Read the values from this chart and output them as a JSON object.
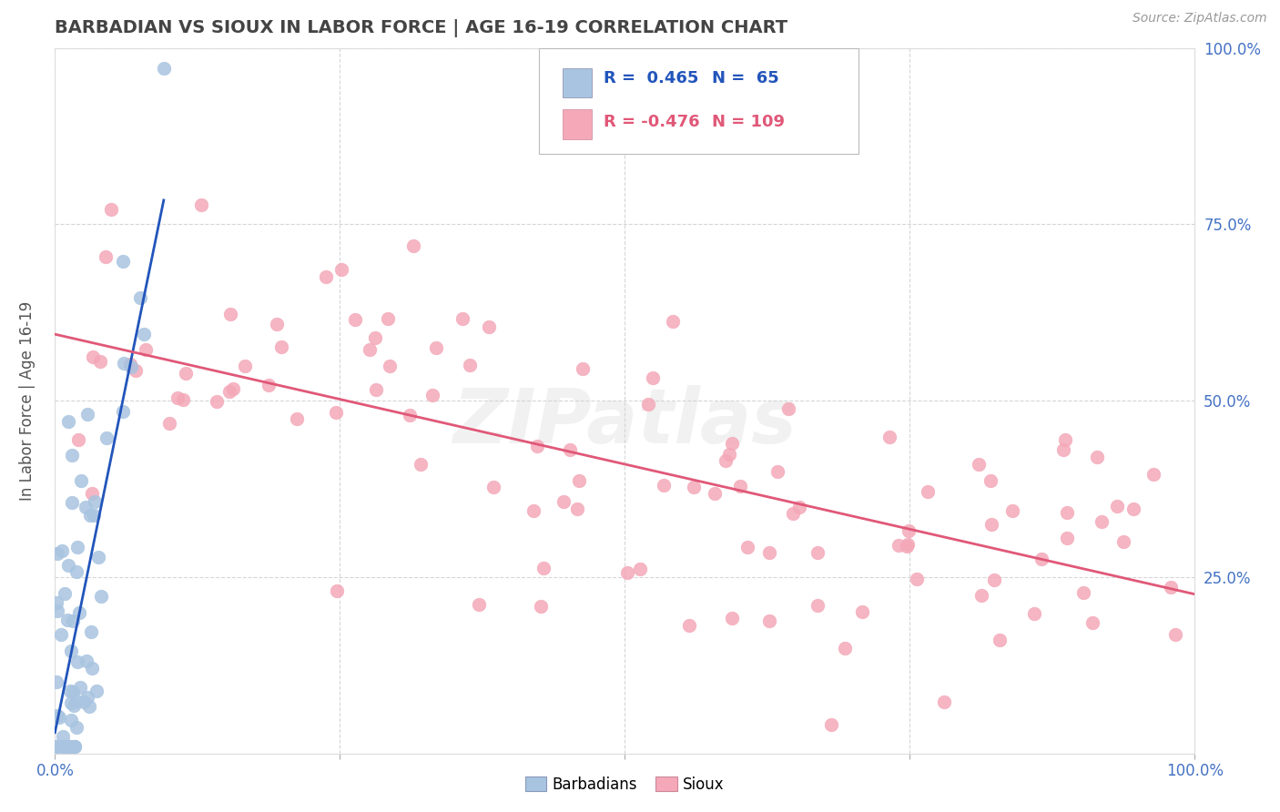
{
  "title": "BARBADIAN VS SIOUX IN LABOR FORCE | AGE 16-19 CORRELATION CHART",
  "source": "Source: ZipAtlas.com",
  "ylabel": "In Labor Force | Age 16-19",
  "barbadian_color": "#a8c4e0",
  "sioux_color": "#f4a8b8",
  "barbadian_R": 0.465,
  "barbadian_N": 65,
  "sioux_R": -0.476,
  "sioux_N": 109,
  "barbadian_line_color": "#2255bb",
  "sioux_line_color": "#e05878",
  "grid_color": "#cccccc",
  "title_color": "#444444",
  "axis_label_color": "#555555",
  "tick_label_color": "#4472c4",
  "watermark_text": "ZIPatlas",
  "background_color": "#ffffff",
  "legend_label_color": "#2255bb",
  "legend_R_color": "#2255bb",
  "legend_R2_color": "#e05878"
}
